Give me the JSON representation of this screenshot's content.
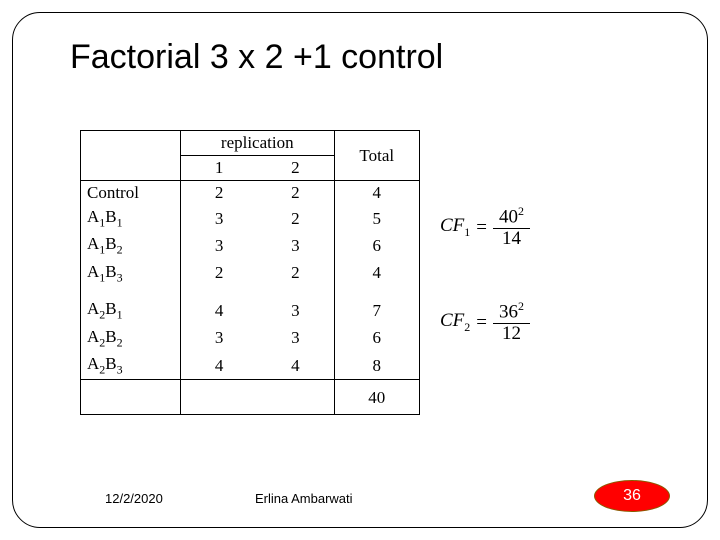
{
  "title": "Factorial 3 x 2 +1 control",
  "table": {
    "header": {
      "replication": "replication",
      "c1": "1",
      "c2": "2",
      "total": "Total"
    },
    "rows_group1": [
      {
        "label_html": "Control",
        "r1": "2",
        "r2": "2",
        "tot": "4"
      },
      {
        "label_html": "A<sub class='sub'>1</sub>B<sub class='sub'>1</sub>",
        "r1": "3",
        "r2": "2",
        "tot": "5"
      },
      {
        "label_html": "A<sub class='sub'>1</sub>B<sub class='sub'>2</sub>",
        "r1": "3",
        "r2": "3",
        "tot": "6"
      },
      {
        "label_html": "A<sub class='sub'>1</sub>B<sub class='sub'>3</sub>",
        "r1": "2",
        "r2": "2",
        "tot": "4"
      }
    ],
    "rows_group2": [
      {
        "label_html": "A<sub class='sub'>2</sub>B<sub class='sub'>1</sub>",
        "r1": "4",
        "r2": "3",
        "tot": "7"
      },
      {
        "label_html": "A<sub class='sub'>2</sub>B<sub class='sub'>2</sub>",
        "r1": "3",
        "r2": "3",
        "tot": "6"
      },
      {
        "label_html": "A<sub class='sub'>2</sub>B<sub class='sub'>3</sub>",
        "r1": "4",
        "r2": "4",
        "tot": "8"
      }
    ],
    "grand_total": "40"
  },
  "formulas": {
    "cf1": {
      "label": "CF",
      "sub": "1",
      "num_base": "40",
      "num_sup": "2",
      "den": "14"
    },
    "cf2": {
      "label": "CF",
      "sub": "2",
      "num_base": "36",
      "num_sup": "2",
      "den": "12"
    }
  },
  "footer": {
    "date": "12/2/2020",
    "author": "Erlina Ambarwati",
    "page": "36"
  },
  "colors": {
    "badge_bg": "#ff0000",
    "badge_border": "#8a5a00",
    "text": "#000000",
    "bg": "#ffffff"
  }
}
